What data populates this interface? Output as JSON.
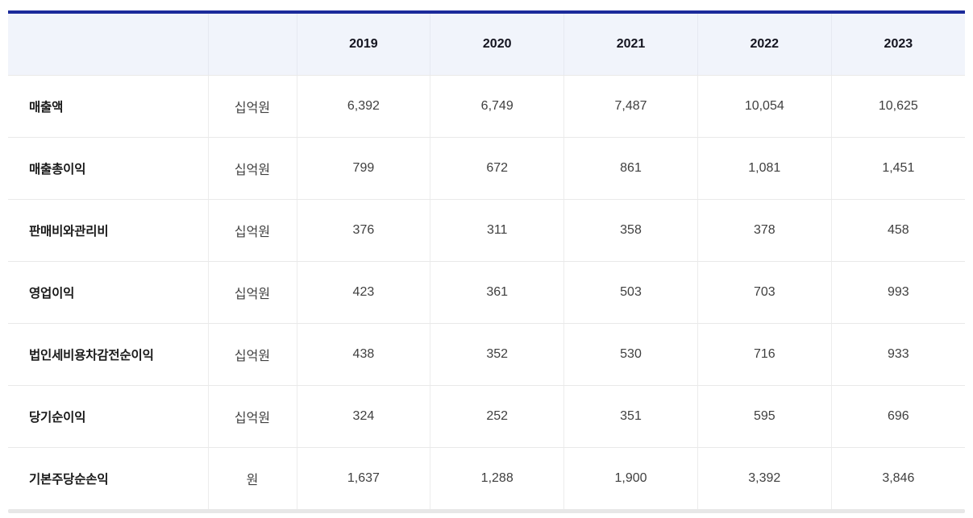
{
  "chart_data": {
    "type": "table",
    "categories": [
      "2019",
      "2020",
      "2021",
      "2022",
      "2023"
    ],
    "series": [
      {
        "name": "매출액",
        "unit": "십억원",
        "values": [
          6392,
          6749,
          7487,
          10054,
          10625
        ]
      },
      {
        "name": "매출총이익",
        "unit": "십억원",
        "values": [
          799,
          672,
          861,
          1081,
          1451
        ]
      },
      {
        "name": "판매비와관리비",
        "unit": "십억원",
        "values": [
          376,
          311,
          358,
          378,
          458
        ]
      },
      {
        "name": "영업이익",
        "unit": "십억원",
        "values": [
          423,
          361,
          503,
          703,
          993
        ]
      },
      {
        "name": "법인세비용차감전순이익",
        "unit": "십억원",
        "values": [
          438,
          352,
          530,
          716,
          933
        ]
      },
      {
        "name": "당기순이익",
        "unit": "십억원",
        "values": [
          324,
          252,
          351,
          595,
          696
        ]
      },
      {
        "name": "기본주당순손익",
        "unit": "원",
        "values": [
          1637,
          1288,
          1900,
          3392,
          3846
        ]
      }
    ],
    "layout": {
      "grid": "full-borders",
      "header_background": "#f1f4fb",
      "top_border_color": "#1b2a9b"
    }
  },
  "table": {
    "columns": [
      "2019",
      "2020",
      "2021",
      "2022",
      "2023"
    ],
    "rows": [
      {
        "label": "매출액",
        "unit": "십억원",
        "values": [
          "6,392",
          "6,749",
          "7,487",
          "10,054",
          "10,625"
        ]
      },
      {
        "label": "매출총이익",
        "unit": "십억원",
        "values": [
          "799",
          "672",
          "861",
          "1,081",
          "1,451"
        ]
      },
      {
        "label": "판매비와관리비",
        "unit": "십억원",
        "values": [
          "376",
          "311",
          "358",
          "378",
          "458"
        ]
      },
      {
        "label": "영업이익",
        "unit": "십억원",
        "values": [
          "423",
          "361",
          "503",
          "703",
          "993"
        ]
      },
      {
        "label": "법인세비용차감전순이익",
        "unit": "십억원",
        "values": [
          "438",
          "352",
          "530",
          "716",
          "933"
        ]
      },
      {
        "label": "당기순이익",
        "unit": "십억원",
        "values": [
          "324",
          "252",
          "351",
          "595",
          "696"
        ]
      },
      {
        "label": "기본주당순손익",
        "unit": "원",
        "values": [
          "1,637",
          "1,288",
          "1,900",
          "3,392",
          "3,846"
        ]
      }
    ],
    "colors": {
      "top_border": "#1b2a9b",
      "header_bg": "#f1f4fb",
      "row_divider": "#e9e9e9",
      "column_divider": "#ececec",
      "bottom_bar": "#e7e7e7"
    }
  }
}
